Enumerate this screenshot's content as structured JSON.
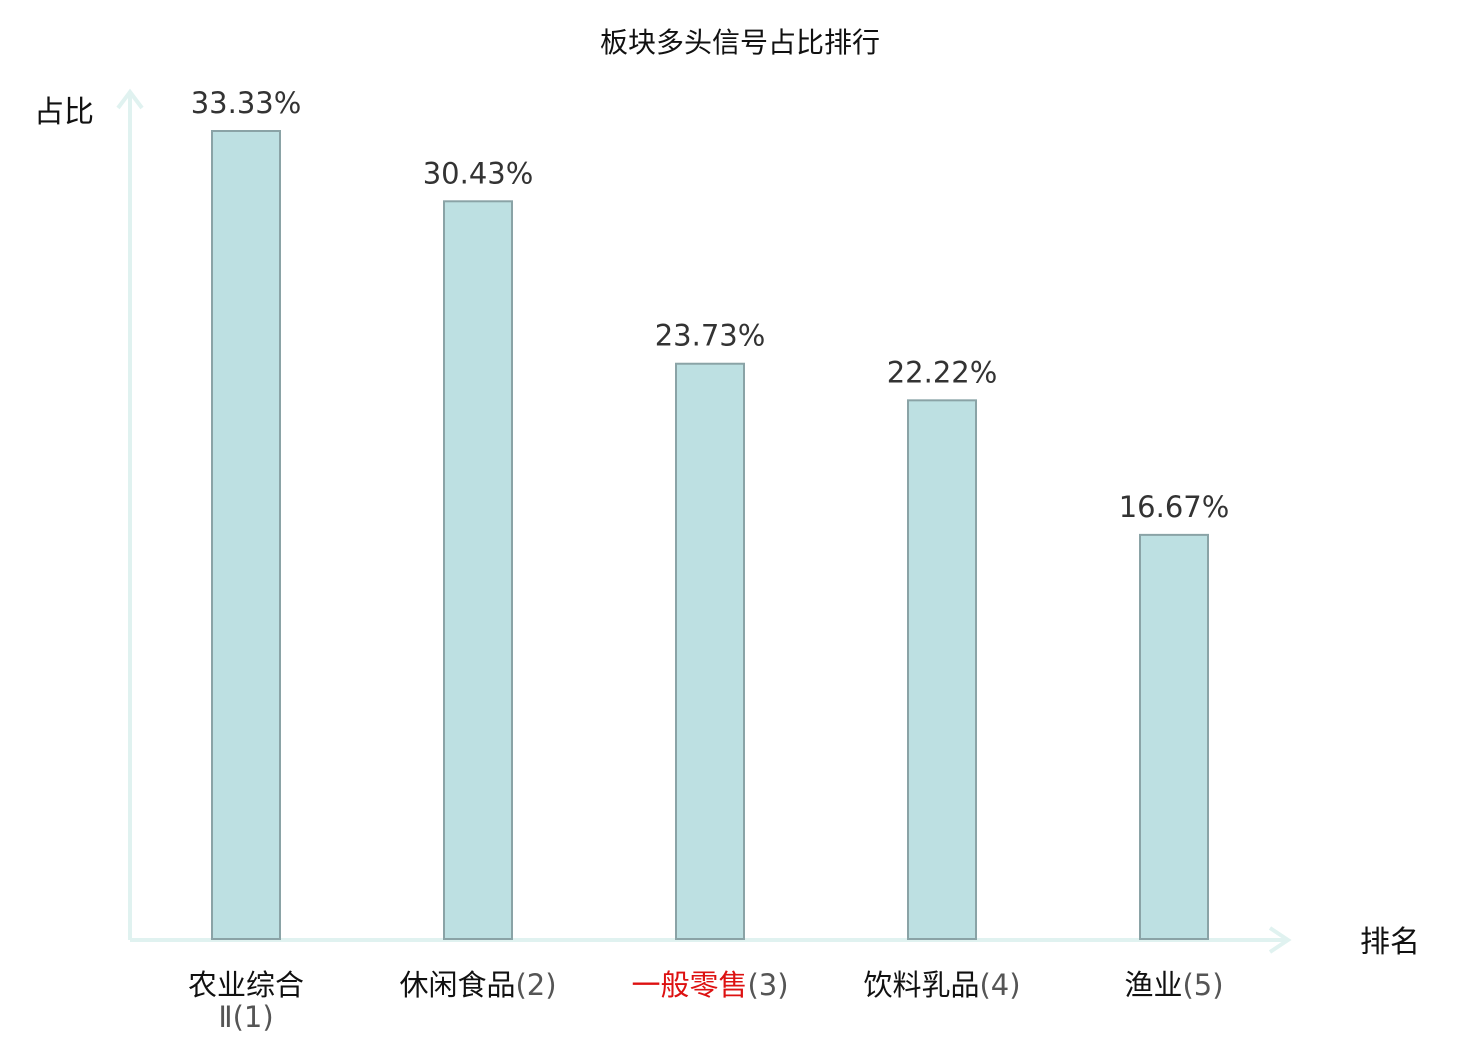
{
  "chart_data": {
    "type": "bar",
    "title": "板块多头信号占比排行",
    "xlabel": "排名",
    "ylabel": "占比",
    "categories": [
      {
        "name": "农业综合",
        "name_line2": "Ⅱ",
        "rank": "(1)",
        "color": "#111111"
      },
      {
        "name": "休闲食品",
        "name_line2": "",
        "rank": "(2)",
        "color": "#111111"
      },
      {
        "name": "一般零售",
        "name_line2": "",
        "rank": "(3)",
        "color": "#dd1111"
      },
      {
        "name": "饮料乳品",
        "name_line2": "",
        "rank": "(4)",
        "color": "#111111"
      },
      {
        "name": "渔业",
        "name_line2": "",
        "rank": "(5)",
        "color": "#111111"
      }
    ],
    "values": [
      33.33,
      30.43,
      23.73,
      22.22,
      16.67
    ],
    "value_labels": [
      "33.33%",
      "30.43%",
      "23.73%",
      "22.22%",
      "16.67%"
    ],
    "ylim": [
      0,
      33.33
    ],
    "grid": false,
    "legend": "none",
    "colors": {
      "bar_fill": "#bde0e2",
      "bar_stroke": "#8aa3a6",
      "axis": "#e0f2f0",
      "highlight": "#dd1111"
    }
  }
}
